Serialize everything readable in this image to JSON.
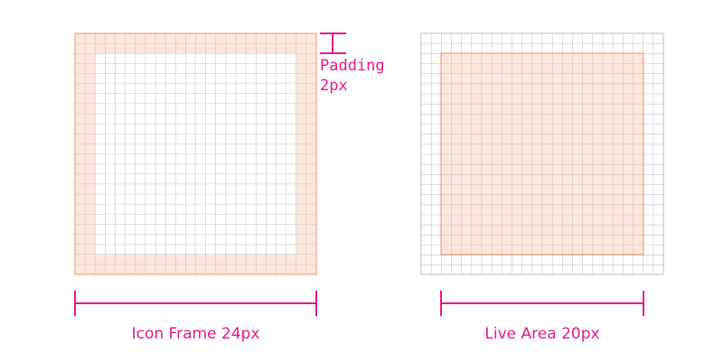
{
  "colors": {
    "accent": "#e6198a",
    "frame_fill": "#fde6dc",
    "frame_stroke": "#f4a57c",
    "grid": "#c8c8c8"
  },
  "padding_annotation": {
    "line1": "Padding",
    "line2": "2px"
  },
  "left_caption": "Icon Frame 24px",
  "right_caption": "Live Area 20px"
}
